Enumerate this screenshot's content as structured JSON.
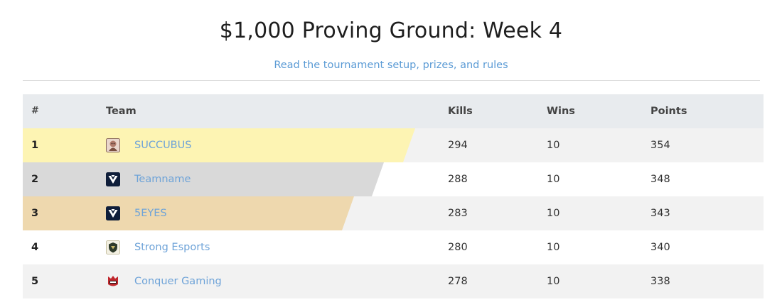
{
  "page": {
    "title": "$1,000 Proving Ground: Week 4",
    "rules_link": "Read the tournament setup, prizes, and rules"
  },
  "table": {
    "columns": {
      "rank": "#",
      "team": "Team",
      "kills": "Kills",
      "wins": "Wins",
      "points": "Points"
    },
    "rows": [
      {
        "rank": "1",
        "team": "SUCCUBUS",
        "kills": "294",
        "wins": "10",
        "points": "354",
        "logo_icon": "succubus-logo-icon"
      },
      {
        "rank": "2",
        "team": "Teamname",
        "kills": "288",
        "wins": "10",
        "points": "348",
        "logo_icon": "shield-v-logo-icon"
      },
      {
        "rank": "3",
        "team": "5EYES",
        "kills": "283",
        "wins": "10",
        "points": "343",
        "logo_icon": "shield-v-logo-icon"
      },
      {
        "rank": "4",
        "team": "Strong Esports",
        "kills": "280",
        "wins": "10",
        "points": "340",
        "logo_icon": "strong-esports-logo-icon"
      },
      {
        "rank": "5",
        "team": "Conquer Gaming",
        "kills": "278",
        "wins": "10",
        "points": "338",
        "logo_icon": "conquer-gaming-logo-icon"
      }
    ]
  },
  "colors": {
    "gold": "#fdf4b3",
    "silver": "#d9d9d9",
    "bronze": "#eed8ae",
    "link": "#6ea3d8",
    "header_bg": "#e8ebee"
  }
}
